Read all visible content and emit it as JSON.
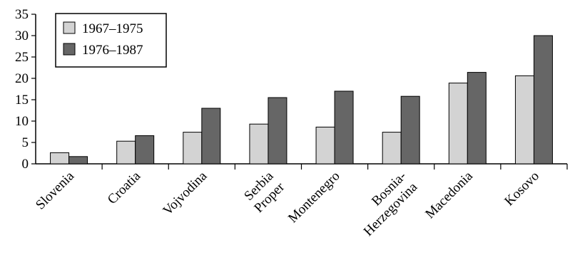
{
  "chart_data": {
    "type": "bar",
    "title": "",
    "xlabel": "",
    "ylabel": "",
    "ylim": [
      0,
      35
    ],
    "yticks": [
      0,
      5,
      10,
      15,
      20,
      25,
      30,
      35
    ],
    "grid": false,
    "legend_position": "top-left",
    "categories": [
      [
        "Slovenia"
      ],
      [
        "Croatia"
      ],
      [
        "Vojvodina"
      ],
      [
        "Serbia",
        "Proper"
      ],
      [
        "Montenegro"
      ],
      [
        "Bosnia-",
        "Herzegovina"
      ],
      [
        "Macedonia"
      ],
      [
        "Kosovo"
      ]
    ],
    "series": [
      {
        "name": "1967–1975",
        "color": "#d3d3d3",
        "values": [
          2.6,
          5.3,
          7.4,
          9.3,
          8.6,
          7.4,
          18.9,
          20.6
        ]
      },
      {
        "name": "1976–1987",
        "color": "#666666",
        "values": [
          1.7,
          6.6,
          13.0,
          15.5,
          17.0,
          15.8,
          21.4,
          30.0
        ]
      }
    ]
  }
}
